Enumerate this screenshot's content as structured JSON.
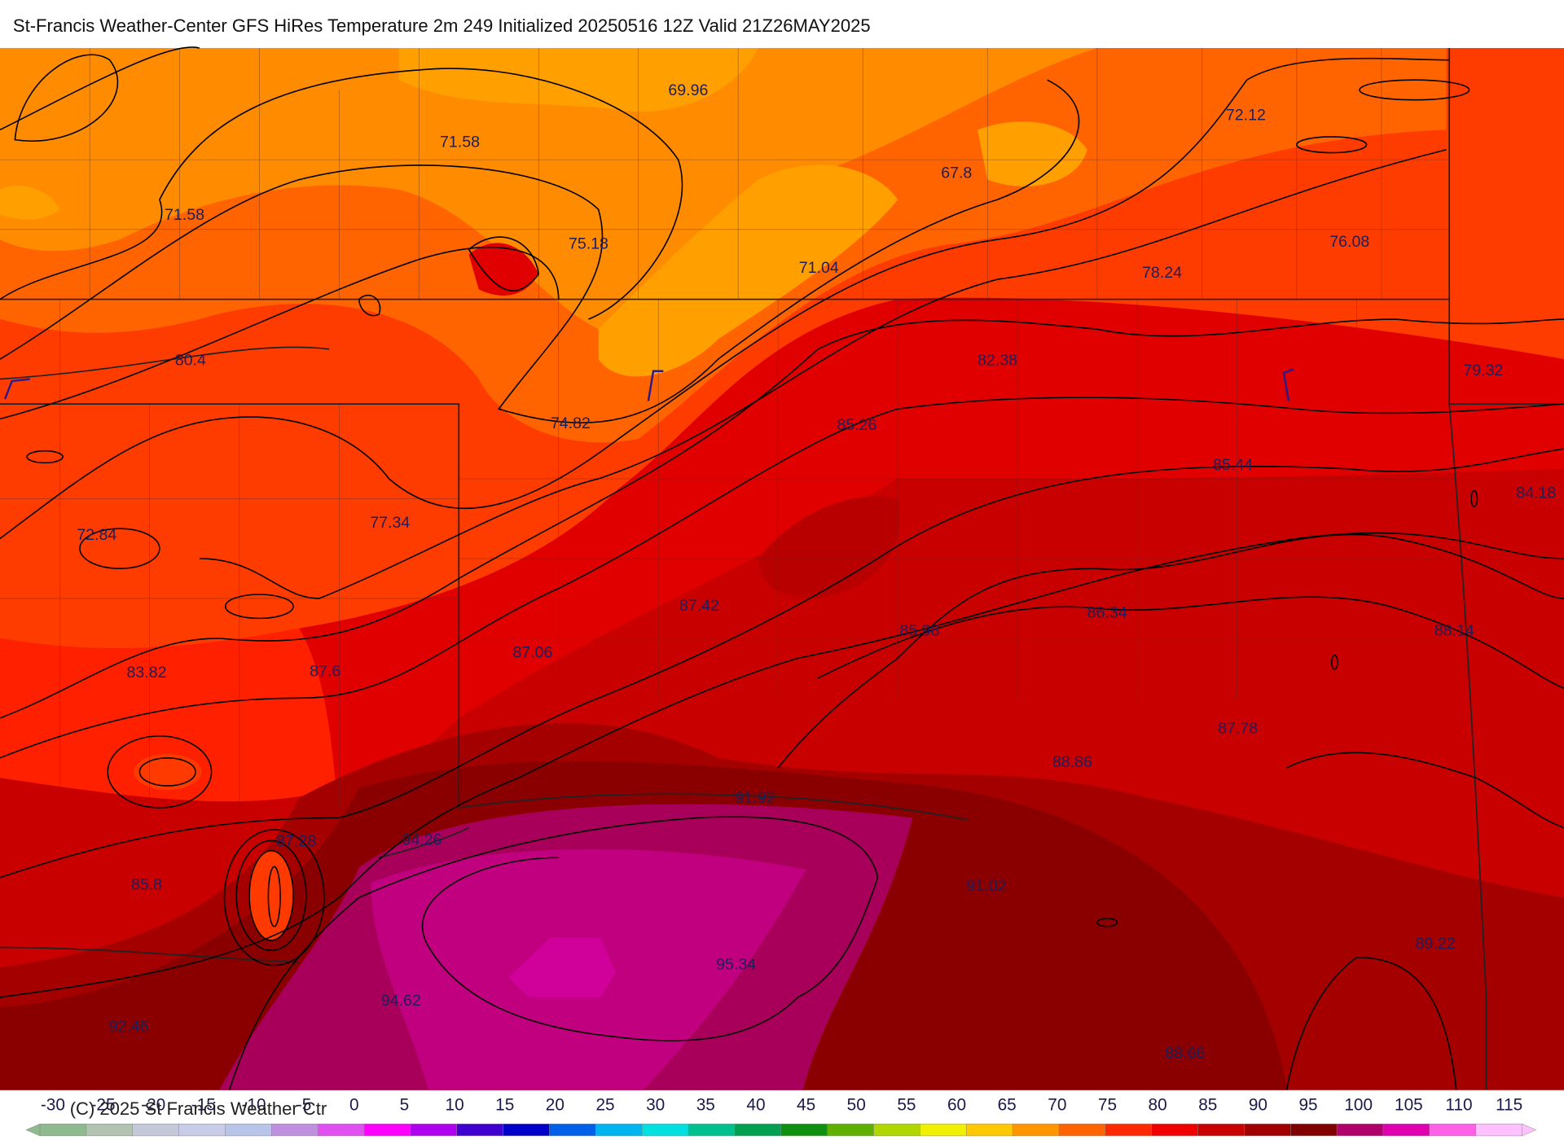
{
  "title": "St-Francis Weather-Center GFS HiRes Temperature 2m  249 Initialized 20250516 12Z Valid 21Z26MAY2025",
  "temperature_labels": [
    "69.96",
    "71.58",
    "71.58",
    "75.18",
    "72.12",
    "67.8",
    "71.04",
    "78.24",
    "76.08",
    "80.4",
    "82.38",
    "79.32",
    "74.82",
    "85.26",
    "85.44",
    "84.18",
    "72.84",
    "77.34",
    "87.42",
    "86.34",
    "85.98",
    "88.14",
    "87.06",
    "83.82",
    "87.6",
    "87.78",
    "88.86",
    "91.92",
    "94.26",
    "87.28",
    "85.8",
    "91.02",
    "89.22",
    "95.34",
    "94.62",
    "92.46",
    "88.66"
  ],
  "colorbar": {
    "ticks": [
      -30,
      -25,
      -20,
      -15,
      -10,
      -5,
      0,
      5,
      10,
      15,
      20,
      25,
      30,
      35,
      40,
      45,
      50,
      55,
      60,
      65,
      70,
      75,
      80,
      85,
      90,
      95,
      100,
      105,
      110,
      115
    ],
    "colors": [
      "#8fb98f",
      "#b0c4b0",
      "#c4c8d8",
      "#c8cce8",
      "#b8c4e8",
      "#c090e0",
      "#e050f0",
      "#ff00ff",
      "#b000f0",
      "#4000d0",
      "#0000c8",
      "#0060e8",
      "#00b4f0",
      "#00e0e0",
      "#00c090",
      "#00a050",
      "#109010",
      "#60b000",
      "#b0d800",
      "#f0f000",
      "#ffc800",
      "#ff9600",
      "#ff6400",
      "#ff2800",
      "#f00000",
      "#c80000",
      "#a00000",
      "#800000",
      "#b0006a",
      "#e000b0",
      "#ff60e8",
      "#ffc0ff"
    ]
  },
  "copyright": "(C) 2025 St Francis Weather Ctr"
}
